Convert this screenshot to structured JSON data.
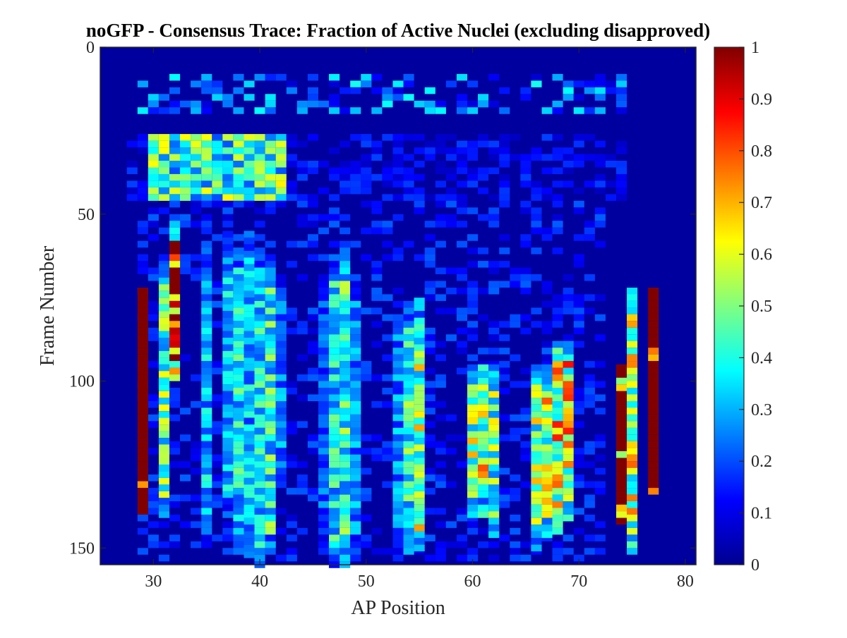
{
  "chart_data": {
    "type": "heatmap",
    "title": "noGFP - Consensus Trace: Fraction of Active Nuclei (excluding disapproved)",
    "xlabel": "AP Position",
    "ylabel": "Frame Number",
    "xlim": [
      25,
      81
    ],
    "ylim": [
      0,
      155
    ],
    "y_reversed": true,
    "x_ticks": [
      "30",
      "40",
      "50",
      "60",
      "70",
      "80"
    ],
    "y_ticks": [
      "0",
      "50",
      "100",
      "150"
    ],
    "colormap": "jet",
    "color_range": [
      0,
      1
    ],
    "colorbar_ticks": [
      "0",
      "0.1",
      "0.2",
      "0.3",
      "0.4",
      "0.5",
      "0.6",
      "0.7",
      "0.8",
      "0.9",
      "1"
    ],
    "background_value": 0.03,
    "stripe_columns": [
      {
        "ap": 29,
        "frames": [
          72,
          138
        ],
        "value": 1.0
      },
      {
        "ap": 31,
        "frames": [
          65,
          140
        ],
        "value": 0.45
      },
      {
        "ap": 32,
        "frames": [
          52,
          98
        ],
        "value": 0.95
      },
      {
        "ap": 35,
        "frames": [
          60,
          145
        ],
        "value": 0.3
      },
      {
        "ap": 37,
        "frames": [
          55,
          140
        ],
        "value": 0.3
      },
      {
        "ap": 38,
        "frames": [
          60,
          150
        ],
        "value": 0.35
      },
      {
        "ap": 39,
        "frames": [
          55,
          152
        ],
        "value": 0.3
      },
      {
        "ap": 40,
        "frames": [
          60,
          155
        ],
        "value": 0.35
      },
      {
        "ap": 41,
        "frames": [
          62,
          150
        ],
        "value": 0.4
      },
      {
        "ap": 42,
        "frames": [
          70,
          130
        ],
        "value": 0.25
      },
      {
        "ap": 46,
        "frames": [
          70,
          150
        ],
        "value": 0.2
      },
      {
        "ap": 47,
        "frames": [
          62,
          155
        ],
        "value": 0.35
      },
      {
        "ap": 48,
        "frames": [
          58,
          155
        ],
        "value": 0.4
      },
      {
        "ap": 49,
        "frames": [
          70,
          150
        ],
        "value": 0.25
      },
      {
        "ap": 53,
        "frames": [
          80,
          150
        ],
        "value": 0.25
      },
      {
        "ap": 54,
        "frames": [
          78,
          150
        ],
        "value": 0.4
      },
      {
        "ap": 55,
        "frames": [
          75,
          150
        ],
        "value": 0.5
      },
      {
        "ap": 60,
        "frames": [
          95,
          140
        ],
        "value": 0.5
      },
      {
        "ap": 61,
        "frames": [
          95,
          140
        ],
        "value": 0.55
      },
      {
        "ap": 62,
        "frames": [
          95,
          145
        ],
        "value": 0.45
      },
      {
        "ap": 66,
        "frames": [
          95,
          150
        ],
        "value": 0.5
      },
      {
        "ap": 67,
        "frames": [
          95,
          145
        ],
        "value": 0.55
      },
      {
        "ap": 68,
        "frames": [
          88,
          145
        ],
        "value": 0.6
      },
      {
        "ap": 69,
        "frames": [
          88,
          140
        ],
        "value": 0.6
      },
      {
        "ap": 74,
        "frames": [
          95,
          142
        ],
        "value": 1.0
      },
      {
        "ap": 75,
        "frames": [
          72,
          150
        ],
        "value": 0.55
      },
      {
        "ap": 77,
        "frames": [
          72,
          132
        ],
        "value": 1.0
      }
    ],
    "early_band": {
      "frames": [
        26,
        45
      ],
      "ap_range": [
        30,
        42
      ],
      "value": 0.4
    },
    "top_band": {
      "frames": [
        8,
        18
      ],
      "ap_range": [
        29,
        74
      ],
      "value": 0.2
    }
  }
}
